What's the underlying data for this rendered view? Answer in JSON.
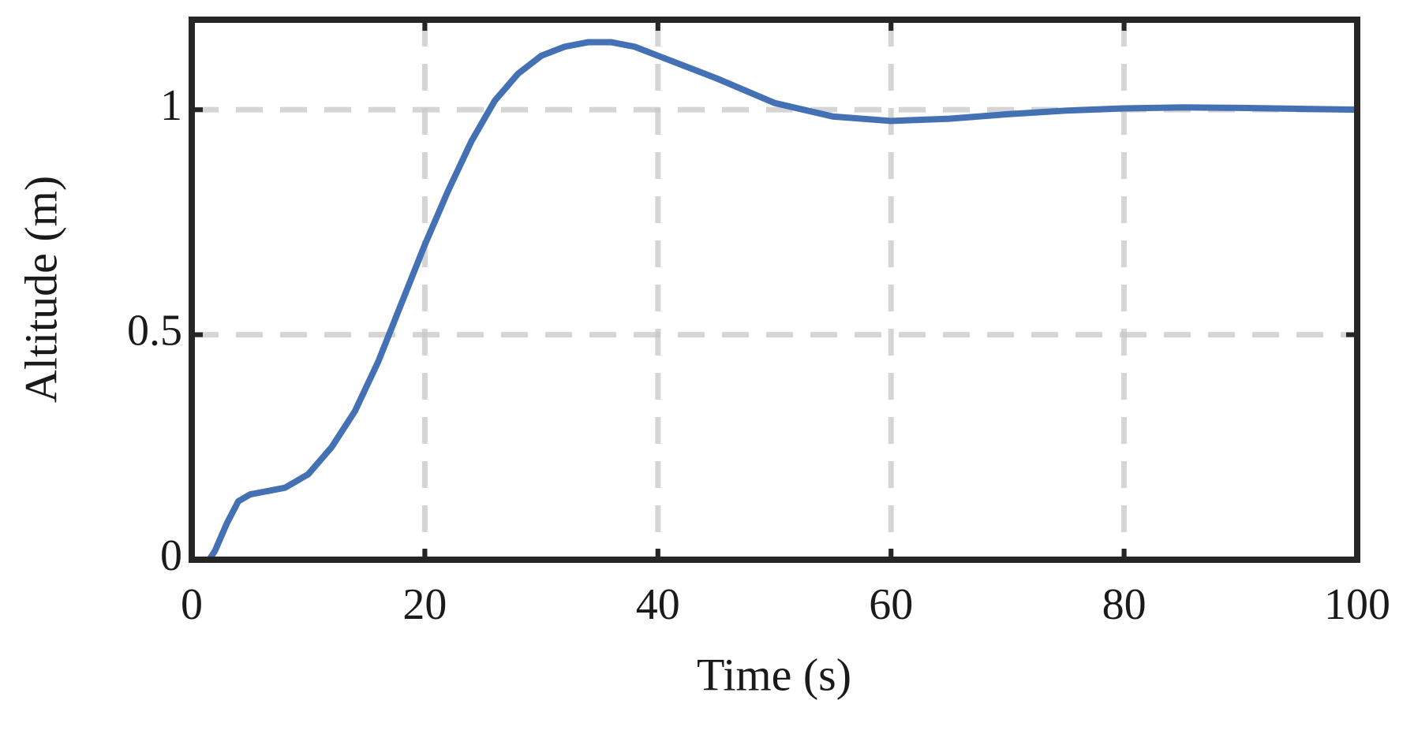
{
  "chart_data": {
    "type": "line",
    "x_label": "Time (s)",
    "y_label": "Altitude (m)",
    "x": [
      0,
      1,
      1.5,
      2,
      3,
      4,
      5,
      6,
      8,
      10,
      12,
      14,
      16,
      18,
      20,
      22,
      24,
      26,
      28,
      30,
      32,
      34,
      36,
      38,
      40,
      45,
      50,
      55,
      60,
      65,
      70,
      75,
      80,
      85,
      90,
      95,
      100
    ],
    "series": [
      {
        "color": "#4470b4",
        "values": [
          0,
          0,
          0,
          0.02,
          0.08,
          0.13,
          0.145,
          0.15,
          0.16,
          0.19,
          0.25,
          0.33,
          0.44,
          0.57,
          0.7,
          0.82,
          0.93,
          1.02,
          1.08,
          1.12,
          1.14,
          1.15,
          1.15,
          1.14,
          1.12,
          1.07,
          1.015,
          0.985,
          0.975,
          0.98,
          0.99,
          0.998,
          1.003,
          1.005,
          1.004,
          1.002,
          1.0
        ]
      }
    ],
    "xlim": [
      0,
      100
    ],
    "xticks": [
      0,
      20,
      40,
      60,
      80,
      100
    ],
    "ylim": [
      0,
      1.2
    ],
    "yticks": [
      0,
      0.5,
      1
    ],
    "grid": true
  }
}
